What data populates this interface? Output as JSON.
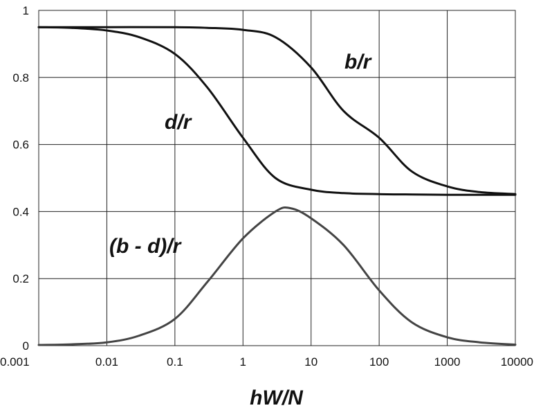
{
  "chart_data": {
    "type": "line",
    "xlabel": "hW/N",
    "ylabel": "",
    "xscale": "log",
    "xlim": [
      0.001,
      10000
    ],
    "ylim": [
      0,
      1
    ],
    "grid": true,
    "xticks": [
      {
        "value": 0.001,
        "label": "0.001"
      },
      {
        "value": 0.01,
        "label": "0.01"
      },
      {
        "value": 0.1,
        "label": "0.1"
      },
      {
        "value": 1,
        "label": "1"
      },
      {
        "value": 10,
        "label": "10"
      },
      {
        "value": 100,
        "label": "100"
      },
      {
        "value": 1000,
        "label": "1000"
      },
      {
        "value": 10000,
        "label": "10000"
      }
    ],
    "yticks": [
      {
        "value": 0,
        "label": "0"
      },
      {
        "value": 0.2,
        "label": "0.2"
      },
      {
        "value": 0.4,
        "label": "0.4"
      },
      {
        "value": 0.6,
        "label": "0.6"
      },
      {
        "value": 0.8,
        "label": "0.8"
      },
      {
        "value": 1,
        "label": "1"
      }
    ],
    "series": [
      {
        "name": "b/r",
        "color": "#111111",
        "x": [
          0.001,
          0.01,
          0.1,
          0.3,
          1,
          3,
          10,
          30,
          100,
          300,
          1000,
          3000,
          10000
        ],
        "y": [
          0.95,
          0.95,
          0.95,
          0.948,
          0.942,
          0.92,
          0.83,
          0.7,
          0.62,
          0.52,
          0.475,
          0.458,
          0.452
        ]
      },
      {
        "name": "d/r",
        "color": "#111111",
        "x": [
          0.001,
          0.003,
          0.01,
          0.03,
          0.1,
          0.3,
          1,
          3,
          10,
          30,
          100,
          300,
          1000,
          10000
        ],
        "y": [
          0.95,
          0.948,
          0.94,
          0.92,
          0.87,
          0.77,
          0.62,
          0.5,
          0.465,
          0.455,
          0.452,
          0.451,
          0.45,
          0.45
        ]
      },
      {
        "name": "(b - d)/r",
        "color": "#444444",
        "x": [
          0.001,
          0.003,
          0.01,
          0.03,
          0.1,
          0.3,
          1,
          3,
          5,
          10,
          30,
          100,
          300,
          1000,
          3000,
          10000
        ],
        "y": [
          0.002,
          0.004,
          0.01,
          0.03,
          0.08,
          0.19,
          0.32,
          0.4,
          0.41,
          0.38,
          0.3,
          0.165,
          0.07,
          0.025,
          0.01,
          0.003
        ]
      }
    ]
  }
}
